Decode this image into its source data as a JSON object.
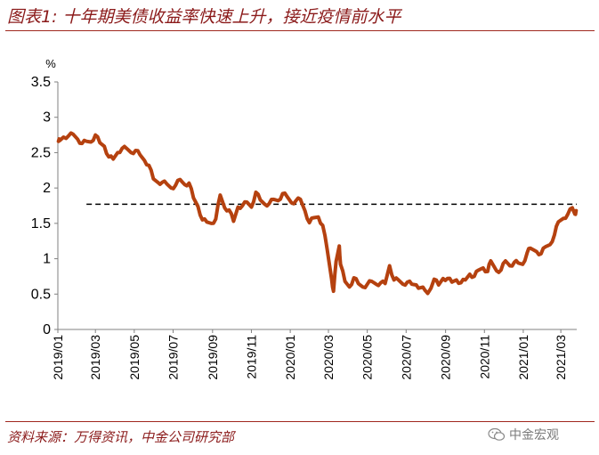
{
  "header": {
    "title": "图表1: 十年期美债收益率快速上升，接近疫情前水平"
  },
  "footer": {
    "source": "资料来源：万得资讯，中金公司研究部",
    "watermark": "中金宏观"
  },
  "colors": {
    "series": "#b5410f",
    "title": "#8b1a1a",
    "rule": "#a0281e",
    "reference": "#000000"
  },
  "icons": {
    "watermark": "wechat-icon"
  },
  "chart_data": {
    "type": "line",
    "ylabel": "%",
    "ylim": [
      0,
      3.5
    ],
    "yticks": [
      "0",
      "0.5",
      "1",
      "1.5",
      "2",
      "2.5",
      "3",
      "3.5"
    ],
    "xlim": [
      "2019-01-01",
      "2021-03-26"
    ],
    "xticks": [
      "2019/01",
      "2019/03",
      "2019/05",
      "2019/07",
      "2019/09",
      "2019/11",
      "2020/01",
      "2020/03",
      "2020/05",
      "2020/07",
      "2020/09",
      "2020/11",
      "2021/01",
      "2021/03"
    ],
    "grid": false,
    "reference_line": {
      "y": 1.77,
      "from": "2019-02-15",
      "to": "2021-03-26",
      "style": "dashed"
    },
    "series": [
      {
        "color": "#b5410f",
        "points": [
          [
            "2019-01-02",
            2.66
          ],
          [
            "2019-01-04",
            2.67
          ],
          [
            "2019-01-10",
            2.72
          ],
          [
            "2019-01-18",
            2.74
          ],
          [
            "2019-01-25",
            2.76
          ],
          [
            "2019-02-01",
            2.69
          ],
          [
            "2019-02-08",
            2.63
          ],
          [
            "2019-02-15",
            2.66
          ],
          [
            "2019-02-22",
            2.65
          ],
          [
            "2019-03-01",
            2.75
          ],
          [
            "2019-03-08",
            2.64
          ],
          [
            "2019-03-15",
            2.59
          ],
          [
            "2019-03-22",
            2.44
          ],
          [
            "2019-03-29",
            2.41
          ],
          [
            "2019-04-05",
            2.5
          ],
          [
            "2019-04-12",
            2.56
          ],
          [
            "2019-04-19",
            2.56
          ],
          [
            "2019-04-26",
            2.5
          ],
          [
            "2019-05-03",
            2.53
          ],
          [
            "2019-05-10",
            2.47
          ],
          [
            "2019-05-17",
            2.39
          ],
          [
            "2019-05-24",
            2.32
          ],
          [
            "2019-05-31",
            2.13
          ],
          [
            "2019-06-07",
            2.08
          ],
          [
            "2019-06-14",
            2.08
          ],
          [
            "2019-06-21",
            2.06
          ],
          [
            "2019-06-28",
            2.0
          ],
          [
            "2019-07-05",
            2.04
          ],
          [
            "2019-07-12",
            2.12
          ],
          [
            "2019-07-19",
            2.05
          ],
          [
            "2019-07-26",
            2.07
          ],
          [
            "2019-08-02",
            1.86
          ],
          [
            "2019-08-09",
            1.74
          ],
          [
            "2019-08-16",
            1.55
          ],
          [
            "2019-08-23",
            1.52
          ],
          [
            "2019-08-30",
            1.5
          ],
          [
            "2019-09-06",
            1.56
          ],
          [
            "2019-09-13",
            1.9
          ],
          [
            "2019-09-20",
            1.72
          ],
          [
            "2019-09-27",
            1.69
          ],
          [
            "2019-10-04",
            1.53
          ],
          [
            "2019-10-11",
            1.73
          ],
          [
            "2019-10-18",
            1.75
          ],
          [
            "2019-10-25",
            1.8
          ],
          [
            "2019-11-01",
            1.73
          ],
          [
            "2019-11-08",
            1.94
          ],
          [
            "2019-11-15",
            1.83
          ],
          [
            "2019-11-22",
            1.77
          ],
          [
            "2019-11-29",
            1.78
          ],
          [
            "2019-12-06",
            1.84
          ],
          [
            "2019-12-13",
            1.82
          ],
          [
            "2019-12-20",
            1.92
          ],
          [
            "2019-12-27",
            1.88
          ],
          [
            "2020-01-03",
            1.79
          ],
          [
            "2020-01-10",
            1.82
          ],
          [
            "2020-01-17",
            1.84
          ],
          [
            "2020-01-24",
            1.68
          ],
          [
            "2020-01-31",
            1.51
          ],
          [
            "2020-02-07",
            1.58
          ],
          [
            "2020-02-14",
            1.59
          ],
          [
            "2020-02-21",
            1.47
          ],
          [
            "2020-02-28",
            1.13
          ],
          [
            "2020-03-06",
            0.71
          ],
          [
            "2020-03-09",
            0.54
          ],
          [
            "2020-03-13",
            0.96
          ],
          [
            "2020-03-18",
            1.18
          ],
          [
            "2020-03-20",
            0.92
          ],
          [
            "2020-03-27",
            0.68
          ],
          [
            "2020-04-03",
            0.6
          ],
          [
            "2020-04-10",
            0.73
          ],
          [
            "2020-04-17",
            0.65
          ],
          [
            "2020-04-24",
            0.6
          ],
          [
            "2020-05-01",
            0.64
          ],
          [
            "2020-05-08",
            0.68
          ],
          [
            "2020-05-15",
            0.64
          ],
          [
            "2020-05-22",
            0.66
          ],
          [
            "2020-05-29",
            0.65
          ],
          [
            "2020-06-05",
            0.9
          ],
          [
            "2020-06-12",
            0.7
          ],
          [
            "2020-06-19",
            0.7
          ],
          [
            "2020-06-26",
            0.64
          ],
          [
            "2020-07-03",
            0.67
          ],
          [
            "2020-07-10",
            0.64
          ],
          [
            "2020-07-17",
            0.63
          ],
          [
            "2020-07-24",
            0.59
          ],
          [
            "2020-07-31",
            0.55
          ],
          [
            "2020-08-04",
            0.51
          ],
          [
            "2020-08-14",
            0.71
          ],
          [
            "2020-08-21",
            0.63
          ],
          [
            "2020-08-28",
            0.72
          ],
          [
            "2020-09-04",
            0.72
          ],
          [
            "2020-09-11",
            0.67
          ],
          [
            "2020-09-18",
            0.7
          ],
          [
            "2020-09-25",
            0.66
          ],
          [
            "2020-10-02",
            0.7
          ],
          [
            "2020-10-09",
            0.78
          ],
          [
            "2020-10-16",
            0.75
          ],
          [
            "2020-10-23",
            0.84
          ],
          [
            "2020-10-30",
            0.87
          ],
          [
            "2020-11-06",
            0.82
          ],
          [
            "2020-11-11",
            0.97
          ],
          [
            "2020-11-20",
            0.83
          ],
          [
            "2020-11-27",
            0.84
          ],
          [
            "2020-12-04",
            0.97
          ],
          [
            "2020-12-11",
            0.9
          ],
          [
            "2020-12-18",
            0.95
          ],
          [
            "2020-12-24",
            0.94
          ],
          [
            "2020-12-31",
            0.92
          ],
          [
            "2021-01-07",
            1.08
          ],
          [
            "2021-01-12",
            1.15
          ],
          [
            "2021-01-22",
            1.1
          ],
          [
            "2021-01-29",
            1.07
          ],
          [
            "2021-02-05",
            1.17
          ],
          [
            "2021-02-12",
            1.2
          ],
          [
            "2021-02-19",
            1.34
          ],
          [
            "2021-02-25",
            1.52
          ],
          [
            "2021-03-05",
            1.57
          ],
          [
            "2021-03-12",
            1.63
          ],
          [
            "2021-03-19",
            1.72
          ],
          [
            "2021-03-23",
            1.63
          ],
          [
            "2021-03-25",
            1.68
          ]
        ]
      }
    ]
  }
}
